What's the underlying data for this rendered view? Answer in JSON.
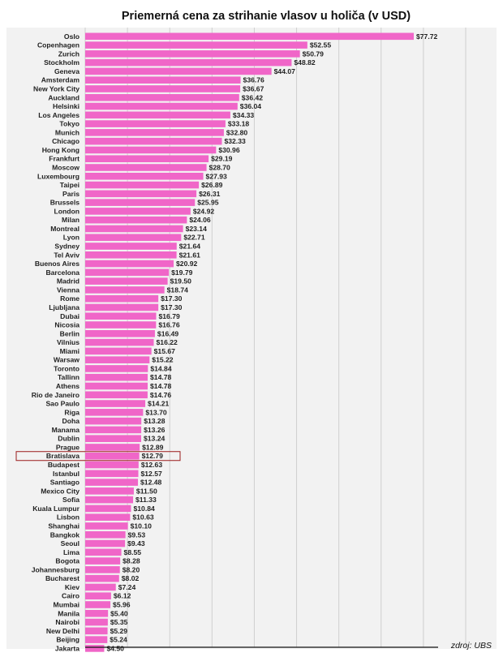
{
  "chart_data": {
    "type": "bar",
    "orientation": "horizontal",
    "title": "Priemerná cena za strihanie vlasov u holiča (v USD)",
    "source": "zdroj: UBS",
    "bar_color": "#f066c8",
    "highlight_color": "#9b1c1c",
    "highlight": "Bratislava",
    "grid": true,
    "background": "#f2f2f2",
    "xlim": [
      0,
      90
    ],
    "categories": [
      "Oslo",
      "Copenhagen",
      "Zurich",
      "Stockholm",
      "Geneva",
      "Amsterdam",
      "New York City",
      "Auckland",
      "Helsinki",
      "Los Angeles",
      "Tokyo",
      "Munich",
      "Chicago",
      "Hong Kong",
      "Frankfurt",
      "Moscow",
      "Luxembourg",
      "Taipei",
      "Paris",
      "Brussels",
      "London",
      "Milan",
      "Montreal",
      "Lyon",
      "Sydney",
      "Tel Aviv",
      "Buenos Aires",
      "Barcelona",
      "Madrid",
      "Vienna",
      "Rome",
      "Ljubljana",
      "Dubai",
      "Nicosia",
      "Berlin",
      "Vilnius",
      "Miami",
      "Warsaw",
      "Toronto",
      "Tallinn",
      "Athens",
      "Rio de Janeiro",
      "Sao Paulo",
      "Riga",
      "Doha",
      "Manama",
      "Dublin",
      "Prague",
      "Bratislava",
      "Budapest",
      "Istanbul",
      "Santiago",
      "Mexico City",
      "Sofia",
      "Kuala Lumpur",
      "Lisbon",
      "Shanghai",
      "Bangkok",
      "Seoul",
      "Lima",
      "Bogota",
      "Johannesburg",
      "Bucharest",
      "Kiev",
      "Cairo",
      "Mumbai",
      "Manila",
      "Nairobi",
      "New Delhi",
      "Beijing",
      "Jakarta"
    ],
    "values": [
      77.72,
      52.55,
      50.79,
      48.82,
      44.07,
      36.76,
      36.67,
      36.42,
      36.04,
      34.33,
      33.18,
      32.8,
      32.33,
      30.96,
      29.19,
      28.7,
      27.93,
      26.89,
      26.31,
      25.95,
      24.92,
      24.06,
      23.14,
      22.71,
      21.64,
      21.61,
      20.92,
      19.79,
      19.5,
      18.74,
      17.3,
      17.3,
      16.79,
      16.76,
      16.49,
      16.22,
      15.67,
      15.22,
      14.84,
      14.78,
      14.78,
      14.76,
      14.21,
      13.7,
      13.28,
      13.26,
      13.24,
      12.89,
      12.79,
      12.63,
      12.57,
      12.48,
      11.5,
      11.33,
      10.84,
      10.63,
      10.1,
      9.53,
      9.43,
      8.55,
      8.28,
      8.2,
      8.02,
      7.24,
      6.12,
      5.96,
      5.4,
      5.35,
      5.29,
      5.24,
      4.5
    ],
    "value_labels": [
      "$77.72",
      "$52.55",
      "$50.79",
      "$48.82",
      "$44.07",
      "$36.76",
      "$36.67",
      "$36.42",
      "$36.04",
      "$34.33",
      "$33.18",
      "$32.80",
      "$32.33",
      "$30.96",
      "$29.19",
      "$28.70",
      "$27.93",
      "$26.89",
      "$26.31",
      "$25.95",
      "$24.92",
      "$24.06",
      "$23.14",
      "$22.71",
      "$21.64",
      "$21.61",
      "$20.92",
      "$19.79",
      "$19.50",
      "$18.74",
      "$17.30",
      "$17.30",
      "$16.79",
      "$16.76",
      "$16.49",
      "$16.22",
      "$15.67",
      "$15.22",
      "$14.84",
      "$14.78",
      "$14.78",
      "$14.76",
      "$14.21",
      "$13.70",
      "$13.28",
      "$13.26",
      "$13.24",
      "$12.89",
      "$12.79",
      "$12.63",
      "$12.57",
      "$12.48",
      "$11.50",
      "$11.33",
      "$10.84",
      "$10.63",
      "$10.10",
      "$9.53",
      "$9.43",
      "$8.55",
      "$8.28",
      "$8.20",
      "$8.02",
      "$7.24",
      "$6.12",
      "$5.96",
      "$5.40",
      "$5.35",
      "$5.29",
      "$5.24",
      "$4.50"
    ]
  }
}
